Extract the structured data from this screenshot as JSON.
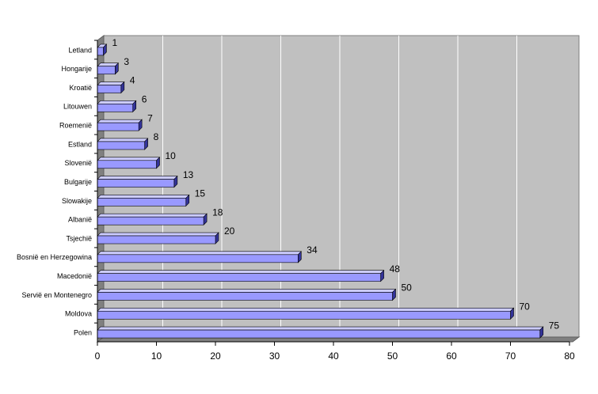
{
  "chart_data": {
    "type": "bar3d_horizontal",
    "categories": [
      "Letland",
      "Hongarije",
      "Kroatië",
      "Litouwen",
      "Roemenië",
      "Estland",
      "Slovenië",
      "Bulgarije",
      "Slowakije",
      "Albanië",
      "Tsjechië",
      "Bosnië en Herzegowina",
      "Macedonië",
      "Servië en Montenegro",
      "Moldova",
      "Polen"
    ],
    "values": [
      1,
      3,
      4,
      6,
      7,
      8,
      10,
      13,
      15,
      18,
      20,
      34,
      48,
      50,
      70,
      75
    ],
    "color": "#9999ff",
    "xlim": [
      0,
      80
    ],
    "xticks": [
      0,
      10,
      20,
      30,
      40,
      50,
      60,
      70,
      80
    ],
    "grid": true
  }
}
